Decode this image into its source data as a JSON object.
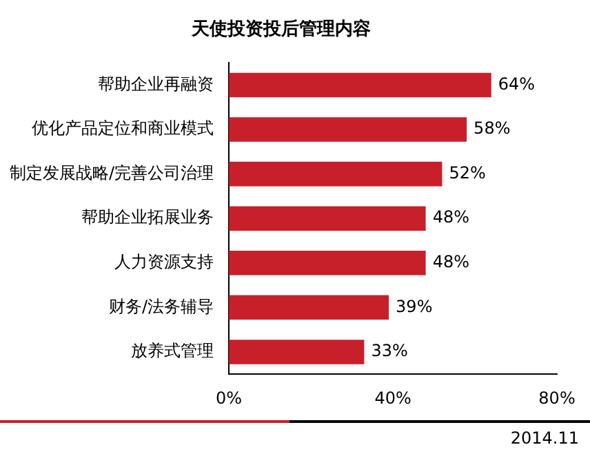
{
  "chart_data": {
    "type": "bar",
    "orientation": "horizontal",
    "title": "天使投资投后管理内容",
    "categories": [
      "帮助企业再融资",
      "优化产品定位和商业模式",
      "制定发展战略/完善公司治理",
      "帮助企业拓展业务",
      "人力资源支持",
      "财务/法务辅导",
      "放养式管理"
    ],
    "values": [
      64,
      58,
      52,
      48,
      48,
      39,
      33
    ],
    "value_labels": [
      "64%",
      "58%",
      "52%",
      "48%",
      "48%",
      "39%",
      "33%"
    ],
    "color": "#c8202b",
    "xlim": [
      0,
      80
    ],
    "xticks": [
      {
        "value": 0,
        "label": "0%"
      },
      {
        "value": 40,
        "label": "40%"
      },
      {
        "value": 80,
        "label": "80%"
      }
    ],
    "grid": false,
    "legend": false,
    "annotations": [
      "2014.11"
    ]
  }
}
